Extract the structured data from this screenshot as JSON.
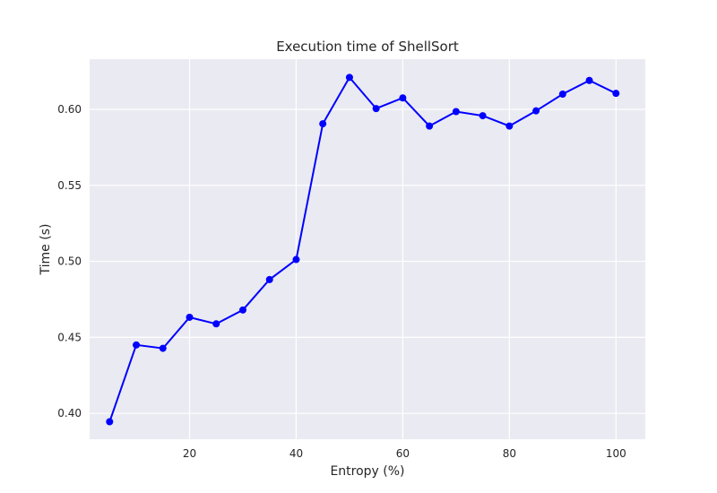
{
  "chart_data": {
    "type": "line",
    "title": "Execution time of ShellSort",
    "xlabel": "Entropy (%)",
    "ylabel": "Time (s)",
    "xlim": [
      1.25,
      105.5
    ],
    "ylim": [
      0.383,
      0.633
    ],
    "x_ticks": [
      20,
      40,
      60,
      80,
      100
    ],
    "y_ticks": [
      0.4,
      0.45,
      0.5,
      0.55,
      0.6
    ],
    "y_tick_labels": [
      "0.40",
      "0.45",
      "0.50",
      "0.55",
      "0.60"
    ],
    "grid": true,
    "colors": {
      "background": "#eaeaf2",
      "grid": "#ffffff",
      "line": "#0000ff"
    },
    "series": [
      {
        "x": [
          5,
          10,
          15,
          20,
          25,
          30,
          35,
          40,
          45,
          50,
          55,
          60,
          65,
          70,
          75,
          80,
          85,
          90,
          95,
          100
        ],
        "values": [
          0.3945,
          0.445,
          0.4428,
          0.4632,
          0.4589,
          0.468,
          0.488,
          0.5012,
          0.5905,
          0.621,
          0.6005,
          0.6075,
          0.589,
          0.5985,
          0.5958,
          0.589,
          0.599,
          0.61,
          0.619,
          0.6105
        ]
      }
    ]
  }
}
